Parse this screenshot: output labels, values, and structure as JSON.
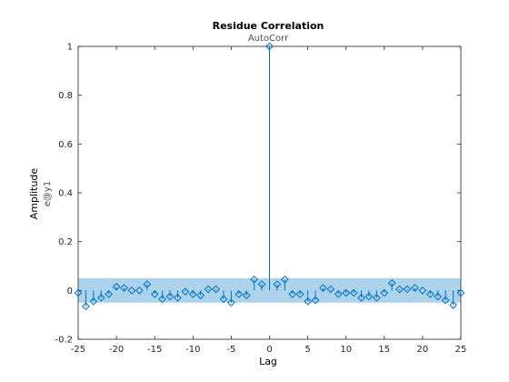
{
  "chart_data": {
    "type": "stem",
    "title": "Residue Correlation",
    "subtitle": "AutoCorr",
    "xlabel": "Lag",
    "ylabel": "Amplitude",
    "ylabel_sub": "e@y1",
    "xlim": [
      -25,
      25
    ],
    "ylim": [
      -0.2,
      1
    ],
    "xticks": [
      -25,
      -20,
      -15,
      -10,
      -5,
      0,
      5,
      10,
      15,
      20,
      25
    ],
    "yticks": [
      -0.2,
      0,
      0.2,
      0.4,
      0.6,
      0.8,
      1
    ],
    "ytick_labels": [
      "-0.2",
      "0",
      "0.2",
      "0.4",
      "0.6",
      "0.8",
      "1"
    ],
    "confidence_band": [
      -0.05,
      0.05
    ],
    "colors": {
      "stem": "#0072BD",
      "band": "#9ECAE9",
      "axis": "#262626"
    },
    "lags": [
      -25,
      -24,
      -23,
      -22,
      -21,
      -20,
      -19,
      -18,
      -17,
      -16,
      -15,
      -14,
      -13,
      -12,
      -11,
      -10,
      -9,
      -8,
      -7,
      -6,
      -5,
      -4,
      -3,
      -2,
      -1,
      0,
      1,
      2,
      3,
      4,
      5,
      6,
      7,
      8,
      9,
      10,
      11,
      12,
      13,
      14,
      15,
      16,
      17,
      18,
      19,
      20,
      21,
      22,
      23,
      24,
      25
    ],
    "values": [
      -0.01,
      -0.065,
      -0.045,
      -0.03,
      -0.015,
      0.015,
      0.01,
      0.0,
      0.0,
      0.025,
      -0.015,
      -0.035,
      -0.025,
      -0.03,
      -0.005,
      -0.015,
      -0.02,
      0.005,
      0.005,
      -0.035,
      -0.05,
      -0.015,
      -0.02,
      0.045,
      0.025,
      1.0,
      0.025,
      0.045,
      -0.015,
      -0.015,
      -0.045,
      -0.04,
      0.01,
      0.005,
      -0.015,
      -0.01,
      -0.01,
      -0.03,
      -0.025,
      -0.03,
      -0.01,
      0.03,
      0.005,
      0.005,
      0.01,
      0.0,
      -0.015,
      -0.025,
      -0.04,
      -0.06,
      -0.01
    ]
  }
}
